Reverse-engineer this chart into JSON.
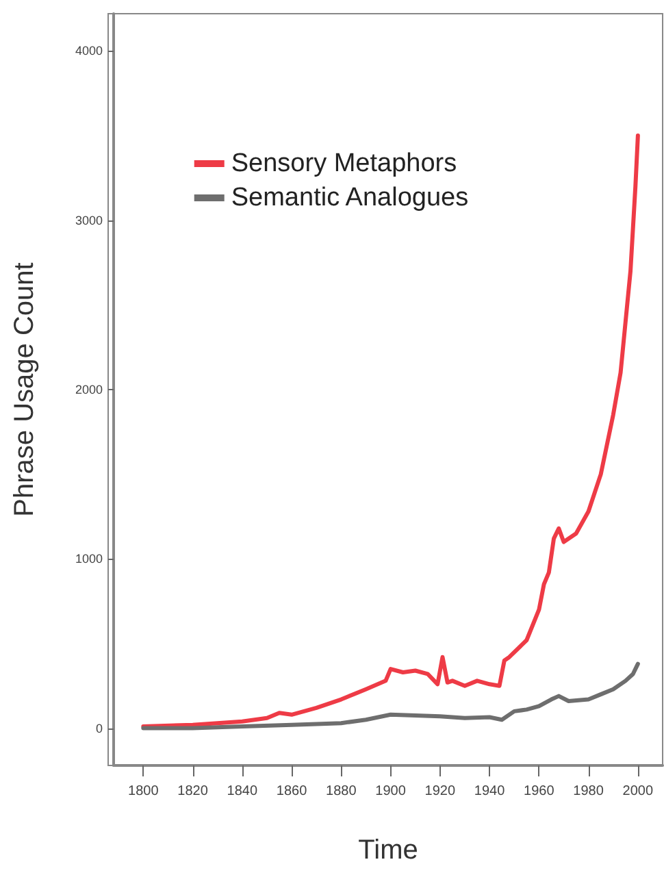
{
  "chart_data": {
    "type": "line",
    "xlabel": "Time",
    "ylabel": "Phrase Usage Count",
    "xlim": [
      1788,
      2010
    ],
    "xticks": [
      1800,
      1820,
      1840,
      1860,
      1880,
      1900,
      1920,
      1940,
      1960,
      1980,
      2000
    ],
    "ylim": [
      -220,
      4220
    ],
    "yticks": [
      0,
      1000,
      2000,
      3000,
      4000
    ],
    "grid": false,
    "legend": "top",
    "marker": "none",
    "line_style": "solid",
    "series": [
      {
        "name": "Sensory Metaphors",
        "color": "#ee3b46",
        "x": [
          1800,
          1820,
          1840,
          1850,
          1855,
          1860,
          1870,
          1880,
          1890,
          1898,
          1900,
          1905,
          1910,
          1915,
          1919,
          1921,
          1923,
          1925,
          1930,
          1935,
          1940,
          1944,
          1946,
          1948,
          1955,
          1960,
          1962,
          1964,
          1966,
          1968,
          1970,
          1975,
          1980,
          1985,
          1990,
          1993,
          1995,
          1997,
          1998,
          1999,
          2000
        ],
        "values": [
          10,
          20,
          40,
          60,
          90,
          80,
          120,
          170,
          230,
          280,
          350,
          330,
          340,
          320,
          260,
          420,
          270,
          280,
          250,
          280,
          260,
          250,
          400,
          420,
          520,
          700,
          850,
          920,
          1120,
          1180,
          1100,
          1150,
          1280,
          1500,
          1850,
          2100,
          2400,
          2700,
          2950,
          3200,
          3500
        ]
      },
      {
        "name": "Semantic Analogues",
        "color": "#6e6e6e",
        "x": [
          1800,
          1820,
          1840,
          1860,
          1880,
          1890,
          1900,
          1910,
          1920,
          1930,
          1940,
          1945,
          1950,
          1955,
          1960,
          1965,
          1968,
          1972,
          1980,
          1985,
          1990,
          1995,
          1998,
          2000
        ],
        "values": [
          0,
          0,
          10,
          20,
          30,
          50,
          80,
          75,
          70,
          60,
          65,
          50,
          100,
          110,
          130,
          170,
          190,
          160,
          170,
          200,
          230,
          280,
          320,
          380
        ]
      }
    ]
  }
}
